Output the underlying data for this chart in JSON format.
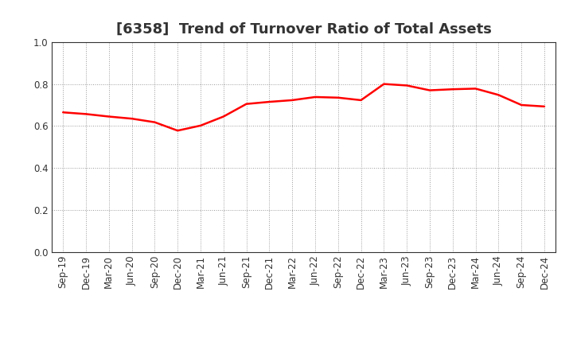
{
  "title": "[6358]  Trend of Turnover Ratio of Total Assets",
  "labels": [
    "Sep-19",
    "Dec-19",
    "Mar-20",
    "Jun-20",
    "Sep-20",
    "Dec-20",
    "Mar-21",
    "Jun-21",
    "Sep-21",
    "Dec-21",
    "Mar-22",
    "Jun-22",
    "Sep-22",
    "Dec-22",
    "Mar-23",
    "Jun-23",
    "Sep-23",
    "Dec-23",
    "Mar-24",
    "Jun-24",
    "Sep-24",
    "Dec-24"
  ],
  "values": [
    0.665,
    0.657,
    0.645,
    0.635,
    0.618,
    0.578,
    0.602,
    0.645,
    0.705,
    0.715,
    0.723,
    0.738,
    0.735,
    0.723,
    0.8,
    0.793,
    0.77,
    0.775,
    0.778,
    0.748,
    0.7,
    0.693
  ],
  "line_color": "#FF0000",
  "line_width": 1.8,
  "ylim": [
    0.0,
    1.0
  ],
  "yticks": [
    0.0,
    0.2,
    0.4,
    0.6,
    0.8,
    1.0
  ],
  "grid_color": "#999999",
  "bg_color": "#ffffff",
  "title_fontsize": 13,
  "tick_fontsize": 8.5,
  "title_color": "#333333"
}
